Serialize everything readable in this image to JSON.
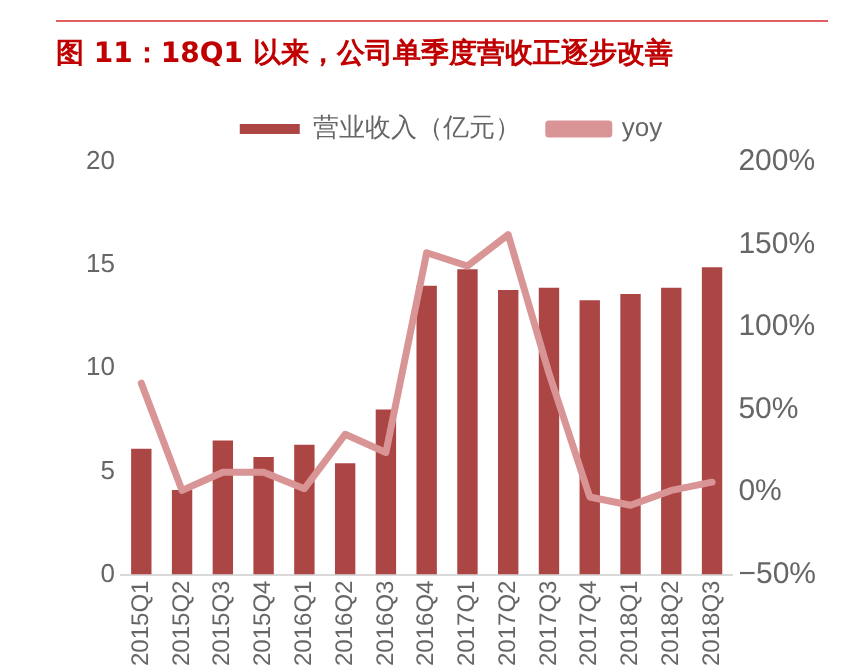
{
  "chart_data": {
    "type": "bar",
    "title": "图 11：18Q1 以来，公司单季度营收正逐步改善",
    "categories": [
      "2015Q1",
      "2015Q2",
      "2015Q3",
      "2015Q4",
      "2016Q1",
      "2016Q2",
      "2016Q3",
      "2016Q4",
      "2017Q1",
      "2017Q2",
      "2017Q3",
      "2017Q4",
      "2018Q1",
      "2018Q2",
      "2018Q3"
    ],
    "series": [
      {
        "name": "营业收入（亿元）",
        "color": "#ab4644",
        "values": [
          6.1,
          4.1,
          6.5,
          5.7,
          6.3,
          5.4,
          8.0,
          14.0,
          14.8,
          13.8,
          13.9,
          13.3,
          13.6,
          13.9,
          14.9
        ]
      },
      {
        "name": "yoy",
        "type": "line",
        "axis": "y2",
        "color": "#d99595",
        "values": [
          66,
          1,
          12,
          12,
          2,
          35,
          24,
          145,
          137,
          156,
          72,
          -3,
          -8,
          1,
          6
        ]
      }
    ],
    "ylim": [
      0,
      20
    ],
    "yticks": [
      0,
      5,
      10,
      15,
      20
    ],
    "y2lim": [
      -50,
      200
    ],
    "y2ticks": [
      {
        "value": -50,
        "label": "−50%"
      },
      {
        "value": 0,
        "label": "0%"
      },
      {
        "value": 50,
        "label": "50%"
      },
      {
        "value": 100,
        "label": "100%"
      },
      {
        "value": 150,
        "label": "150%"
      },
      {
        "value": 200,
        "label": "200%"
      }
    ],
    "grid": false,
    "legend": "top",
    "marker": "none"
  }
}
